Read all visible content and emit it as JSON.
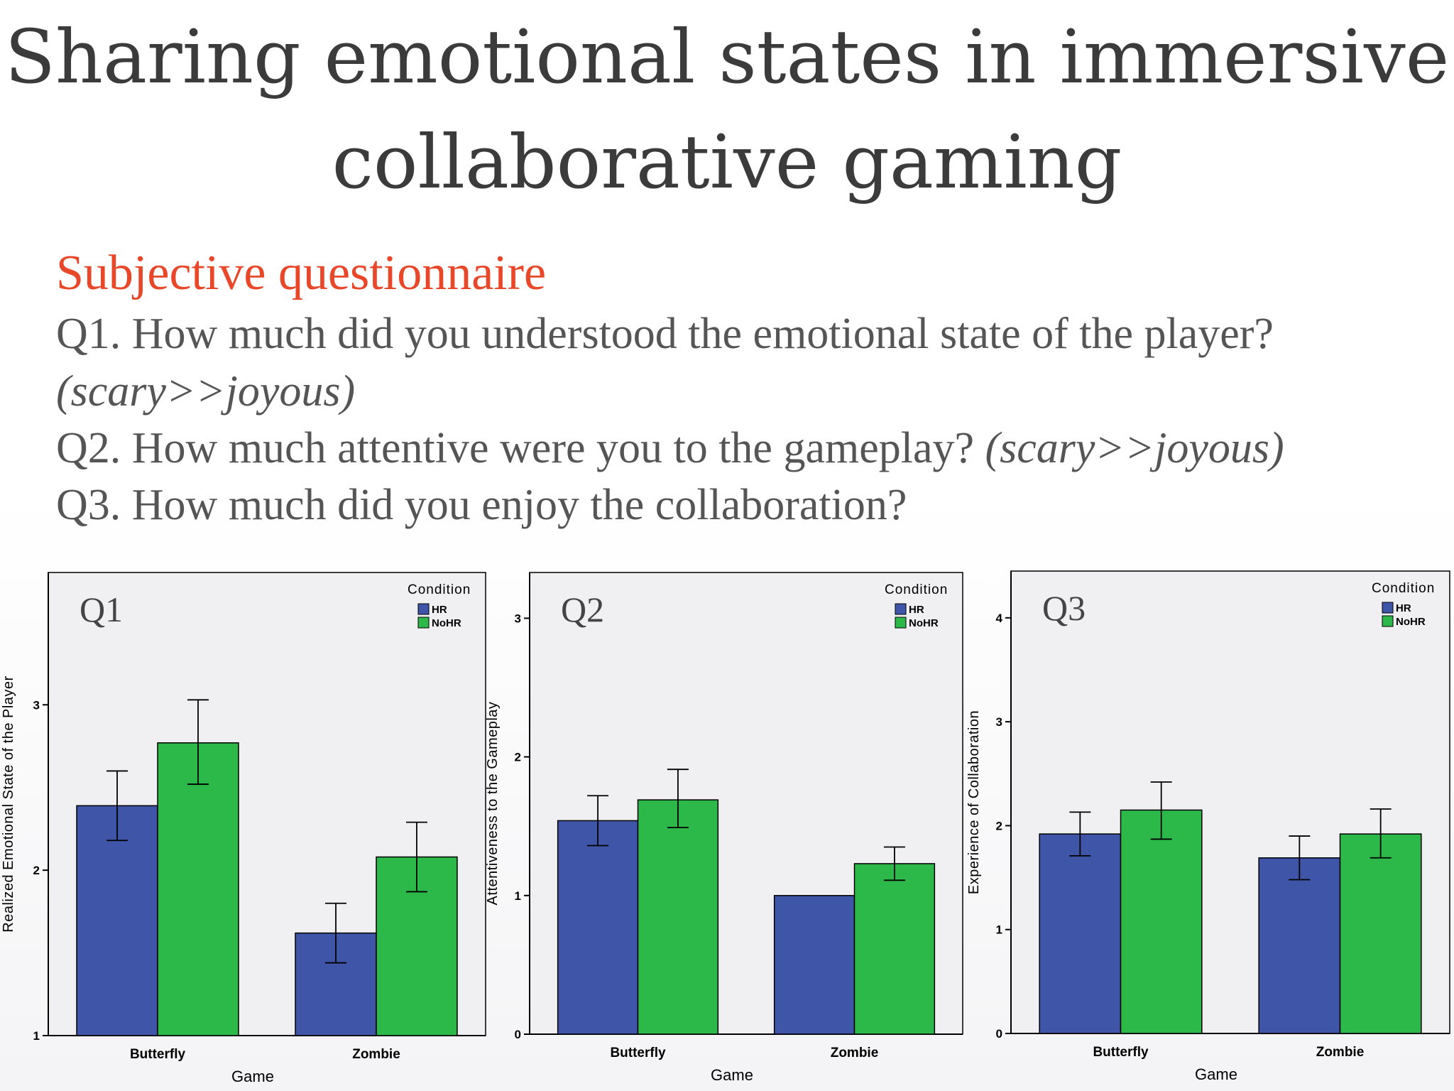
{
  "slide": {
    "title": "Sharing emotional states in immersive collaborative gaming",
    "subtitle": "Subjective questionnaire",
    "q1_text": "Q1. How much did you understood the emotional state of the player?",
    "q1_note": "(scary>>joyous)",
    "q2_text": "Q2. How much attentive were you to the gameplay?",
    "q2_note": "(scary>>joyous)",
    "q3_text": "Q3. How much did you enjoy the collaboration?"
  },
  "colors": {
    "HR": "#3f55a8",
    "NoHR": "#2db84a",
    "title": "#3b3b3b",
    "subtitle": "#e8472a"
  },
  "chart_data": [
    {
      "type": "bar",
      "panel_label": "Q1",
      "categories": [
        "Butterfly",
        "Zombie"
      ],
      "series": [
        {
          "name": "HR",
          "values": [
            2.39,
            1.62
          ],
          "err_low": [
            2.18,
            1.44
          ],
          "err_high": [
            2.6,
            1.8
          ]
        },
        {
          "name": "NoHR",
          "values": [
            2.77,
            2.08
          ],
          "err_low": [
            2.52,
            1.87
          ],
          "err_high": [
            3.03,
            2.29
          ]
        }
      ],
      "xlabel": "Game",
      "ylabel": "Realized Emotional State of the Player",
      "ylim": [
        1,
        3.8
      ],
      "yticks": [
        1,
        2,
        3
      ],
      "legend_title": "Condition",
      "legend": "top-right"
    },
    {
      "type": "bar",
      "panel_label": "Q2",
      "categories": [
        "Butterfly",
        "Zombie"
      ],
      "series": [
        {
          "name": "HR",
          "values": [
            1.54,
            1.0
          ],
          "err_low": [
            1.36,
            1.0
          ],
          "err_high": [
            1.72,
            1.0
          ]
        },
        {
          "name": "NoHR",
          "values": [
            1.69,
            1.23
          ],
          "err_low": [
            1.49,
            1.11
          ],
          "err_high": [
            1.91,
            1.35
          ]
        }
      ],
      "xlabel": "Game",
      "ylabel": "Attentiveness to the Gameplay",
      "ylim": [
        0,
        3.33
      ],
      "yticks": [
        0,
        1,
        2,
        3
      ],
      "legend_title": "Condition",
      "legend": "top-right"
    },
    {
      "type": "bar",
      "panel_label": "Q3",
      "categories": [
        "Butterfly",
        "Zombie"
      ],
      "series": [
        {
          "name": "HR",
          "values": [
            1.92,
            1.69
          ],
          "err_low": [
            1.71,
            1.48
          ],
          "err_high": [
            2.13,
            1.9
          ]
        },
        {
          "name": "NoHR",
          "values": [
            2.15,
            1.92
          ],
          "err_low": [
            1.87,
            1.69
          ],
          "err_high": [
            2.42,
            2.16
          ]
        }
      ],
      "xlabel": "Game",
      "ylabel": "Experience of Collaboration",
      "ylim": [
        0,
        4.45
      ],
      "yticks": [
        0,
        1,
        2,
        3,
        4
      ],
      "legend_title": "Condition",
      "legend": "top-right"
    }
  ]
}
